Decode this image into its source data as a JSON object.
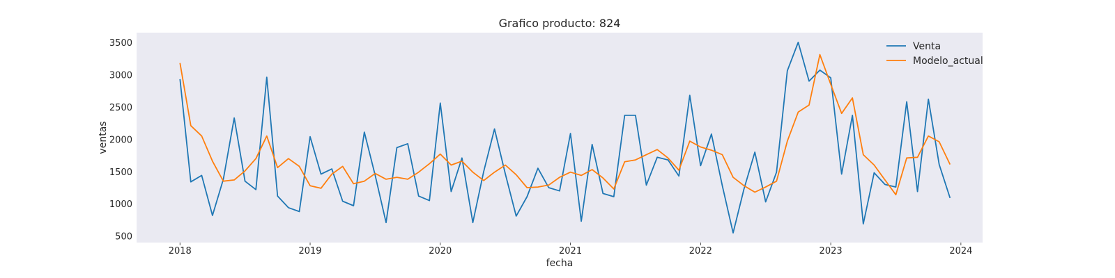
{
  "chart_data": {
    "type": "line",
    "title": "Grafico producto: 824",
    "xlabel": "fecha",
    "ylabel": "ventas",
    "x": [
      "2018-01",
      "2018-02",
      "2018-03",
      "2018-04",
      "2018-05",
      "2018-06",
      "2018-07",
      "2018-08",
      "2018-09",
      "2018-10",
      "2018-11",
      "2018-12",
      "2019-01",
      "2019-02",
      "2019-03",
      "2019-04",
      "2019-05",
      "2019-06",
      "2019-07",
      "2019-08",
      "2019-09",
      "2019-10",
      "2019-11",
      "2019-12",
      "2020-01",
      "2020-02",
      "2020-03",
      "2020-04",
      "2020-05",
      "2020-06",
      "2020-07",
      "2020-08",
      "2020-09",
      "2020-10",
      "2020-11",
      "2020-12",
      "2021-01",
      "2021-02",
      "2021-03",
      "2021-04",
      "2021-05",
      "2021-06",
      "2021-07",
      "2021-08",
      "2021-09",
      "2021-10",
      "2021-11",
      "2021-12",
      "2022-01",
      "2022-02",
      "2022-03",
      "2022-04",
      "2022-05",
      "2022-06",
      "2022-07",
      "2022-08",
      "2022-09",
      "2022-10",
      "2022-11",
      "2022-12",
      "2023-01",
      "2023-02",
      "2023-03",
      "2023-04",
      "2023-05",
      "2023-06",
      "2023-07",
      "2023-08",
      "2023-09",
      "2023-10",
      "2023-11",
      "2023-12"
    ],
    "series": [
      {
        "name": "Venta",
        "color": "#1f77b4",
        "values": [
          2930,
          1340,
          1440,
          820,
          1380,
          2330,
          1350,
          1220,
          2960,
          1120,
          940,
          880,
          2040,
          1460,
          1540,
          1040,
          970,
          2110,
          1440,
          710,
          1870,
          1930,
          1120,
          1050,
          2560,
          1190,
          1710,
          710,
          1500,
          2160,
          1460,
          810,
          1110,
          1550,
          1250,
          1200,
          2090,
          730,
          1920,
          1160,
          1110,
          2370,
          2370,
          1290,
          1720,
          1680,
          1430,
          2680,
          1590,
          2080,
          1280,
          550,
          1230,
          1800,
          1030,
          1490,
          3060,
          3500,
          2900,
          3070,
          2950,
          1460,
          2370,
          690,
          1480,
          1300,
          1260,
          2580,
          1190,
          2620,
          1610,
          1090
        ]
      },
      {
        "name": "Modelo_actual",
        "color": "#ff7f0e",
        "values": [
          3180,
          2210,
          2050,
          1660,
          1350,
          1370,
          1510,
          1700,
          2050,
          1560,
          1700,
          1580,
          1280,
          1240,
          1460,
          1580,
          1310,
          1350,
          1470,
          1380,
          1410,
          1380,
          1490,
          1620,
          1770,
          1600,
          1660,
          1490,
          1360,
          1490,
          1600,
          1450,
          1250,
          1260,
          1290,
          1410,
          1490,
          1440,
          1530,
          1400,
          1230,
          1650,
          1680,
          1760,
          1840,
          1710,
          1520,
          1970,
          1880,
          1830,
          1760,
          1410,
          1280,
          1180,
          1260,
          1350,
          1970,
          2420,
          2530,
          3310,
          2850,
          2400,
          2640,
          1760,
          1600,
          1370,
          1140,
          1710,
          1720,
          2050,
          1960,
          1610
        ]
      }
    ],
    "x_ticks": [
      "2018",
      "2019",
      "2020",
      "2021",
      "2022",
      "2023",
      "2024"
    ],
    "y_ticks": [
      "500",
      "1000",
      "1500",
      "2000",
      "2500",
      "3000",
      "3500"
    ],
    "xlim": [
      "2017-09",
      "2024-03"
    ],
    "ylim": [
      400,
      3650
    ],
    "grid": false,
    "legend_position": "top-right",
    "background": "#eaeaf2"
  }
}
